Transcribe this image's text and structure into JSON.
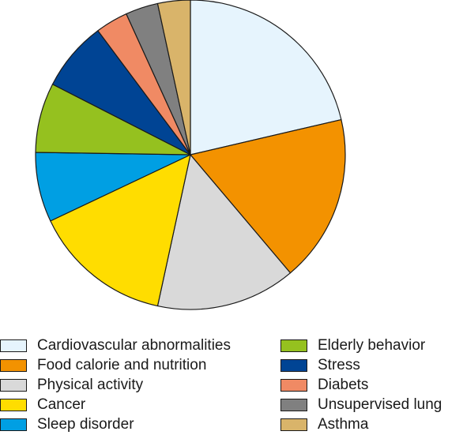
{
  "chart_data": {
    "type": "pie",
    "start_angle_deg": 0,
    "direction": "clockwise",
    "slices": [
      {
        "label": "Cardiovascular abnormalities",
        "value": 22,
        "color": "#e6f4fd"
      },
      {
        "label": "Food calorie and nutrition",
        "value": 18,
        "color": "#f39200"
      },
      {
        "label": "Physical activity",
        "value": 15,
        "color": "#d9d9d9"
      },
      {
        "label": "Cancer",
        "value": 15,
        "color": "#ffdd00"
      },
      {
        "label": "Sleep disorder",
        "value": 7.5,
        "color": "#009fe3"
      },
      {
        "label": "Elderly behavior",
        "value": 7.5,
        "color": "#95c11f"
      },
      {
        "label": "Stress",
        "value": 7.5,
        "color": "#004494"
      },
      {
        "label": "Diabets",
        "value": 3.5,
        "color": "#f08a64"
      },
      {
        "label": "Unsupervised lung",
        "value": 3.5,
        "color": "#808080"
      },
      {
        "label": "Asthma",
        "value": 3.5,
        "color": "#d9b46a"
      }
    ],
    "legend": {
      "placement": "bottom",
      "columns": 2
    }
  }
}
